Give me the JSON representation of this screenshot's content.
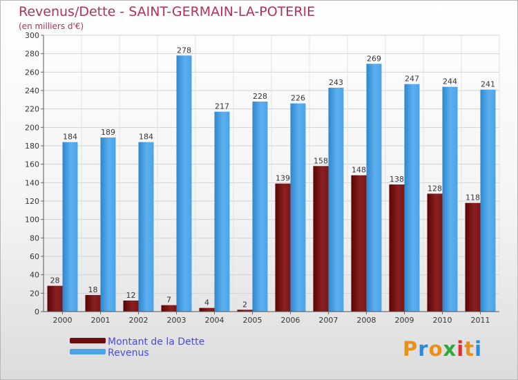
{
  "header": {
    "title": "Revenus/Dette - SAINT-GERMAIN-LA-POTERIE",
    "subtitle": "(en milliers d'€)"
  },
  "legend": {
    "items": [
      {
        "label": "Montant de la Dette",
        "color": "#6b0d0d"
      },
      {
        "label": "Revenus",
        "color": "#4aa3e8"
      }
    ]
  },
  "logo": {
    "text": "Proxiti"
  },
  "colors": {
    "dette": "#7a1717",
    "revenus": "#4aa3e8",
    "title": "#b03060"
  },
  "chart_data": {
    "type": "bar",
    "categories": [
      "2000",
      "2001",
      "2002",
      "2003",
      "2004",
      "2005",
      "2006",
      "2007",
      "2008",
      "2009",
      "2010",
      "2011"
    ],
    "series": [
      {
        "name": "Montant de la Dette",
        "values": [
          28,
          18,
          12,
          7,
          4,
          2,
          139,
          158,
          148,
          138,
          128,
          118
        ]
      },
      {
        "name": "Revenus",
        "values": [
          184,
          189,
          184,
          278,
          217,
          228,
          226,
          243,
          269,
          247,
          244,
          241
        ]
      }
    ],
    "title": "Revenus/Dette - SAINT-GERMAIN-LA-POTERIE",
    "ylabel": "(en milliers d'€)",
    "ylim": [
      0,
      300
    ],
    "ytick_step": 20,
    "grid": true,
    "legend_position": "bottom-left"
  }
}
